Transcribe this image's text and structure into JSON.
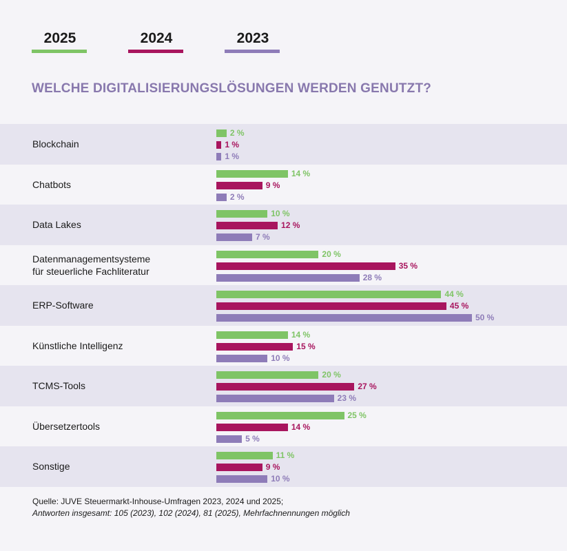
{
  "legend": [
    {
      "label": "2025",
      "color": "#7fc466"
    },
    {
      "label": "2024",
      "color": "#a8155e"
    },
    {
      "label": "2023",
      "color": "#8e7cb8"
    }
  ],
  "chart_data": {
    "type": "bar",
    "orientation": "horizontal",
    "title": "WELCHE DIGITALISIERUNGSLÖSUNGEN WERDEN GENUTZT?",
    "unit": "%",
    "xlim": [
      0,
      50
    ],
    "categories": [
      "Blockchain",
      "Chatbots",
      "Data Lakes",
      "Datenmanagementsysteme\nfür steuerliche Fachliteratur",
      "ERP-Software",
      "Künstliche Intelligenz",
      "TCMS-Tools",
      "Übersetzertools",
      "Sonstige"
    ],
    "series": [
      {
        "name": "2025",
        "color": "#7fc466",
        "label_color": "#7fc466",
        "values": [
          2,
          14,
          10,
          20,
          44,
          14,
          20,
          25,
          11
        ]
      },
      {
        "name": "2024",
        "color": "#a8155e",
        "label_color": "#a8155e",
        "values": [
          1,
          9,
          12,
          35,
          45,
          15,
          27,
          14,
          9
        ]
      },
      {
        "name": "2023",
        "color": "#8e7cb8",
        "label_color": "#8e7cb8",
        "values": [
          1,
          2,
          7,
          28,
          50,
          10,
          23,
          5,
          10
        ]
      }
    ],
    "value_labels": [
      [
        "2 %",
        "1 %",
        "1 %"
      ],
      [
        "14 %",
        "9 %",
        "2 %"
      ],
      [
        "10 %",
        "12 %",
        "7 %"
      ],
      [
        "20 %",
        "35 %",
        "28 %"
      ],
      [
        "44 %",
        "45 %",
        "50 %"
      ],
      [
        "14 %",
        "15 %",
        "10 %"
      ],
      [
        "20 %",
        "27 %",
        "23 %"
      ],
      [
        "25 %",
        "14 %",
        "5 %"
      ],
      [
        "11 %",
        "9 %",
        "10 %"
      ]
    ]
  },
  "source": {
    "line1": "Quelle: JUVE Steuermarkt-Inhouse-Umfragen 2023, 2024 und 2025;",
    "line2": "Antworten insgesamt: 105 (2023), 102 (2024), 81 (2025), Mehrfachnennungen möglich"
  }
}
